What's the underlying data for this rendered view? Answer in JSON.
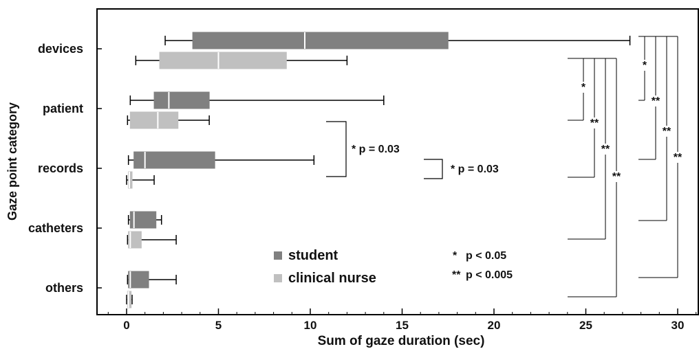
{
  "chart_data": {
    "type": "boxplot-horizontal",
    "xlabel": "Sum of gaze duration (sec)",
    "ylabel": "Gaze point category",
    "xlim": [
      -1.5,
      31
    ],
    "xticks": [
      0,
      5,
      10,
      15,
      20,
      25,
      30
    ],
    "categories": [
      "devices",
      "patient",
      "records",
      "catheters",
      "others"
    ],
    "series": [
      {
        "name": "student",
        "color": "#808080",
        "boxes": [
          {
            "category": "devices",
            "min": 2.1,
            "q1": 3.6,
            "median": 9.7,
            "q3": 17.5,
            "max": 27.4
          },
          {
            "category": "patient",
            "min": 0.2,
            "q1": 1.5,
            "median": 2.3,
            "q3": 4.5,
            "max": 14.0
          },
          {
            "category": "records",
            "min": 0.1,
            "q1": 0.4,
            "median": 1.0,
            "q3": 4.8,
            "max": 10.2
          },
          {
            "category": "catheters",
            "min": 0.1,
            "q1": 0.2,
            "median": 0.4,
            "q3": 1.6,
            "max": 1.9
          },
          {
            "category": "others",
            "min": 0.05,
            "q1": 0.1,
            "median": 0.2,
            "q3": 1.2,
            "max": 2.7
          }
        ]
      },
      {
        "name": "clinical nurse",
        "color": "#c0c0c0",
        "boxes": [
          {
            "category": "devices",
            "min": 0.5,
            "q1": 1.8,
            "median": 5.0,
            "q3": 8.7,
            "max": 12.0
          },
          {
            "category": "patient",
            "min": 0.05,
            "q1": 0.2,
            "median": 1.7,
            "q3": 2.8,
            "max": 4.5
          },
          {
            "category": "records",
            "min": 0.0,
            "q1": 0.1,
            "median": 0.15,
            "q3": 0.3,
            "max": 1.5
          },
          {
            "category": "catheters",
            "min": 0.05,
            "q1": 0.1,
            "median": 0.2,
            "q3": 0.8,
            "max": 2.7
          },
          {
            "category": "others",
            "min": 0.0,
            "q1": 0.05,
            "median": 0.1,
            "q3": 0.25,
            "max": 0.3
          }
        ]
      }
    ],
    "legend": {
      "placement": "bottom-center",
      "items": [
        {
          "label": "student",
          "color": "#808080"
        },
        {
          "label": "clinical nurse",
          "color": "#c0c0c0"
        }
      ]
    },
    "significance_legend": [
      {
        "marker": "*",
        "label": "p < 0.05"
      },
      {
        "marker": "**",
        "label": "p < 0.005"
      }
    ],
    "annotations": [
      {
        "text": "* p = 0.03",
        "between": [
          "patient",
          "records"
        ],
        "group": "student"
      },
      {
        "text": "* p = 0.03",
        "between": [
          "records",
          "records"
        ],
        "group": "student vs clinical nurse"
      }
    ],
    "comparisons_clinical_nurse": [
      {
        "from": "devices",
        "to": "patient",
        "marker": "*"
      },
      {
        "from": "devices",
        "to": "records",
        "marker": "**"
      },
      {
        "from": "devices",
        "to": "catheters",
        "marker": "**"
      },
      {
        "from": "devices",
        "to": "others",
        "marker": "**"
      }
    ],
    "comparisons_student": [
      {
        "from": "devices",
        "to": "patient",
        "marker": "*"
      },
      {
        "from": "devices",
        "to": "records",
        "marker": "**"
      },
      {
        "from": "devices",
        "to": "catheters",
        "marker": "**"
      },
      {
        "from": "devices",
        "to": "others",
        "marker": "**"
      }
    ]
  }
}
